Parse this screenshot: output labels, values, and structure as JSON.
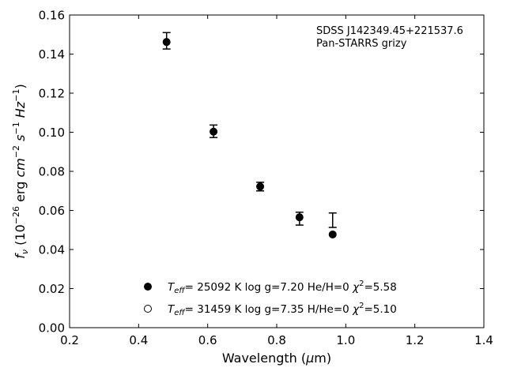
{
  "chart_data": {
    "type": "scatter",
    "title": "",
    "xlabel": "Wavelength (μm)",
    "ylabel": "fν (10⁻²⁶ erg cm⁻² s⁻¹ Hz⁻¹)",
    "xlim": [
      0.2,
      1.4
    ],
    "ylim": [
      0.0,
      0.16
    ],
    "xticks": [
      "0.2",
      "0.4",
      "0.6",
      "0.8",
      "1.0",
      "1.2",
      "1.4"
    ],
    "yticks": [
      "0.00",
      "0.02",
      "0.04",
      "0.06",
      "0.08",
      "0.10",
      "0.12",
      "0.14",
      "0.16"
    ],
    "annotations": [
      "SDSS J142349.45+221537.6",
      "Pan-STARRS grizy"
    ],
    "legend_placement": "lower-center",
    "grid": false,
    "errorbars": [
      {
        "x": 0.481,
        "y": 0.1468,
        "yerr": 0.0042
      },
      {
        "x": 0.617,
        "y": 0.1005,
        "yerr": 0.0032
      },
      {
        "x": 0.752,
        "y": 0.0722,
        "yerr": 0.0022
      },
      {
        "x": 0.866,
        "y": 0.0558,
        "yerr": 0.0033
      },
      {
        "x": 0.962,
        "y": 0.055,
        "yerr": 0.0037
      }
    ],
    "series": [
      {
        "name": "T_eff= 25092 K  log g=7.20  He/H=0  χ²=5.58",
        "marker": "filled-circle",
        "x": [
          0.481,
          0.617,
          0.752,
          0.866,
          0.962
        ],
        "y": [
          0.1462,
          0.1003,
          0.0722,
          0.0565,
          0.0477
        ]
      },
      {
        "name": "T_eff= 31459 K  log g=7.35  H/He=0  χ²=5.10",
        "marker": "open-circle",
        "x": [],
        "y": []
      }
    ],
    "legend": [
      {
        "teff": "25092",
        "logg": "7.20",
        "comp": "He/H=0",
        "chi2": "5.58",
        "marker": "filled-circle"
      },
      {
        "teff": "31459",
        "logg": "7.35",
        "comp": "H/He=0",
        "chi2": "5.10",
        "marker": "open-circle"
      }
    ]
  }
}
